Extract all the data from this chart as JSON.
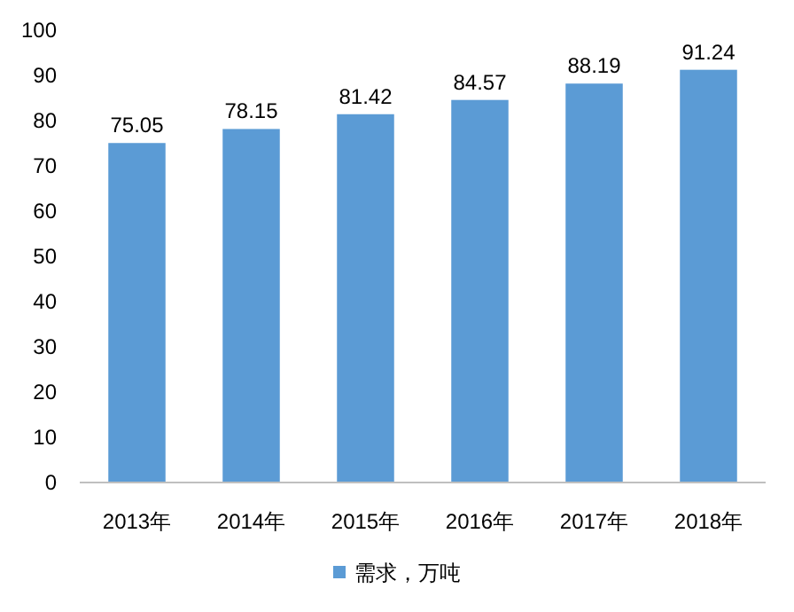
{
  "chart_data": {
    "type": "bar",
    "categories": [
      "2013年",
      "2014年",
      "2015年",
      "2016年",
      "2017年",
      "2018年"
    ],
    "series": [
      {
        "name": "需求，万吨",
        "color": "#5b9bd5",
        "values": [
          75.05,
          78.15,
          81.42,
          84.57,
          88.19,
          91.24
        ]
      }
    ],
    "ylim": [
      0,
      100
    ],
    "yticks": [
      0,
      10,
      20,
      30,
      40,
      50,
      60,
      70,
      80,
      90,
      100
    ],
    "data_labels": true,
    "legend": "bottom"
  }
}
